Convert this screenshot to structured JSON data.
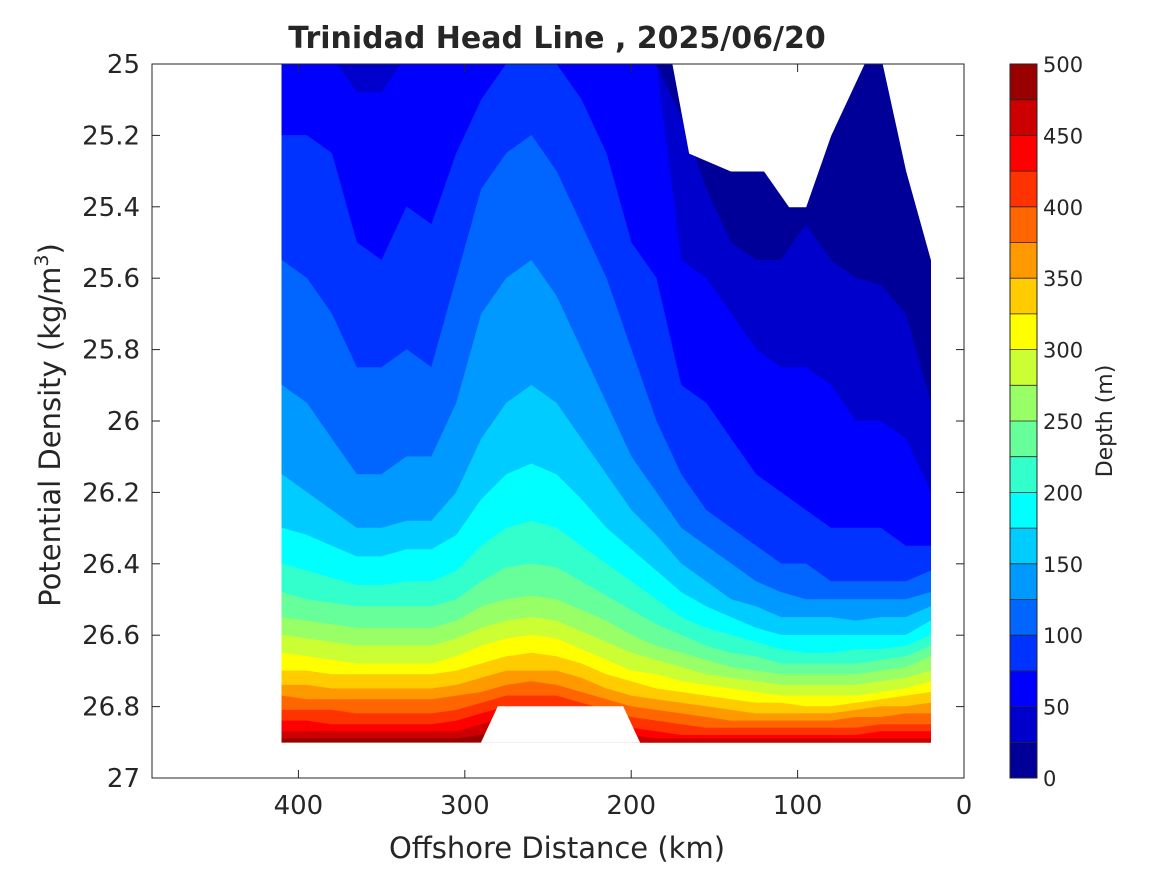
{
  "chart_data": {
    "type": "contour",
    "title": "Trinidad Head Line , 2025/06/20",
    "xlabel": "Offshore Distance (km)",
    "ylabel": "Potential Density (kg/m",
    "ylabel_sup": "3",
    "ylabel_close": ")",
    "x_reversed": true,
    "xlim": [
      488,
      0
    ],
    "ylim": [
      25,
      27
    ],
    "y_reversed": true,
    "xticks": [
      400,
      300,
      200,
      100,
      0
    ],
    "xtick_labels": [
      "400",
      "300",
      "200",
      "100",
      "0"
    ],
    "yticks": [
      25,
      25.2,
      25.4,
      25.6,
      25.8,
      26,
      26.2,
      26.4,
      26.6,
      26.8,
      27
    ],
    "ytick_labels": [
      "25",
      "25.2",
      "25.4",
      "25.6",
      "25.8",
      "26",
      "26.2",
      "26.4",
      "26.6",
      "26.8",
      "27"
    ],
    "grid": false,
    "colorbar": {
      "label": "Depth (m)",
      "min": 0,
      "max": 500,
      "step": 25,
      "ticks": [
        0,
        50,
        100,
        150,
        200,
        250,
        300,
        350,
        400,
        450,
        500
      ],
      "tick_labels": [
        "0",
        "50",
        "100",
        "150",
        "200",
        "250",
        "300",
        "350",
        "400",
        "450",
        "500"
      ],
      "colormap": "jet"
    },
    "stations_km": [
      410,
      395,
      380,
      365,
      350,
      335,
      320,
      305,
      290,
      275,
      260,
      245,
      230,
      215,
      200,
      185,
      170,
      155,
      140,
      125,
      110,
      95,
      80,
      65,
      50,
      35,
      20
    ],
    "isopycnal_depths": {
      "levels": [
        0,
        25,
        50,
        75,
        100,
        125,
        150,
        175,
        200,
        225,
        250,
        275,
        300,
        325,
        350,
        375,
        400,
        425,
        450,
        475,
        500
      ],
      "sigma": [
        [
          null,
          null,
          null,
          null,
          null,
          null,
          null,
          null,
          null,
          null,
          null,
          null,
          null,
          null,
          null,
          null,
          24.95,
          25.0,
          25.1,
          25.2,
          25.3,
          25.15,
          25.0,
          24.98,
          24.98,
          25.3,
          25.55
        ],
        [
          null,
          null,
          null,
          null,
          null,
          null,
          null,
          null,
          null,
          null,
          null,
          null,
          null,
          null,
          null,
          null,
          25.15,
          25.35,
          25.5,
          25.55,
          25.55,
          25.45,
          25.55,
          25.6,
          25.62,
          25.7,
          25.95
        ],
        [
          25.0,
          24.98,
          24.98,
          25.08,
          25.08,
          24.98,
          24.98,
          24.98,
          24.98,
          24.98,
          24.98,
          24.98,
          24.98,
          24.98,
          24.98,
          25.0,
          25.55,
          25.6,
          25.7,
          25.8,
          25.85,
          25.85,
          25.9,
          26.0,
          26.0,
          26.05,
          26.2
        ],
        [
          25.2,
          25.2,
          25.25,
          25.5,
          25.55,
          25.4,
          25.45,
          25.25,
          25.1,
          25.0,
          24.98,
          25.0,
          25.1,
          25.25,
          25.5,
          25.6,
          25.9,
          25.95,
          26.05,
          26.15,
          26.2,
          26.25,
          26.3,
          26.3,
          26.3,
          26.35,
          26.35
        ],
        [
          25.55,
          25.6,
          25.7,
          25.85,
          25.85,
          25.8,
          25.85,
          25.6,
          25.35,
          25.25,
          25.2,
          25.3,
          25.45,
          25.6,
          25.8,
          26.0,
          26.15,
          26.25,
          26.3,
          26.35,
          26.4,
          26.4,
          26.45,
          26.45,
          26.45,
          26.45,
          26.42
        ],
        [
          25.9,
          25.95,
          26.05,
          26.15,
          26.15,
          26.1,
          26.1,
          25.95,
          25.7,
          25.6,
          25.55,
          25.65,
          25.8,
          25.95,
          26.1,
          26.2,
          26.3,
          26.35,
          26.4,
          26.45,
          26.48,
          26.5,
          26.5,
          26.5,
          26.5,
          26.5,
          26.48
        ],
        [
          26.15,
          26.2,
          26.25,
          26.3,
          26.3,
          26.28,
          26.28,
          26.2,
          26.05,
          25.95,
          25.9,
          25.95,
          26.05,
          26.15,
          26.25,
          26.32,
          26.4,
          26.45,
          26.5,
          26.52,
          26.55,
          26.55,
          26.55,
          26.56,
          26.55,
          26.55,
          26.52
        ],
        [
          26.3,
          26.32,
          26.35,
          26.38,
          26.38,
          26.36,
          26.36,
          26.32,
          26.22,
          26.15,
          26.12,
          26.15,
          26.22,
          26.3,
          26.36,
          26.42,
          26.48,
          26.52,
          26.55,
          26.58,
          26.6,
          26.6,
          26.6,
          26.6,
          26.6,
          26.6,
          26.56
        ],
        [
          26.4,
          26.42,
          26.44,
          26.46,
          26.46,
          26.45,
          26.45,
          26.42,
          26.35,
          26.3,
          26.28,
          26.3,
          26.35,
          26.4,
          26.45,
          26.5,
          26.55,
          26.58,
          26.6,
          26.62,
          26.64,
          26.65,
          26.65,
          26.64,
          26.64,
          26.63,
          26.6
        ],
        [
          26.48,
          26.5,
          26.51,
          26.52,
          26.52,
          26.52,
          26.52,
          26.5,
          26.45,
          26.41,
          26.4,
          26.41,
          26.45,
          26.49,
          26.53,
          26.57,
          26.6,
          26.63,
          26.65,
          26.66,
          26.68,
          26.68,
          26.68,
          26.68,
          26.67,
          26.66,
          26.63
        ],
        [
          26.55,
          26.56,
          26.57,
          26.58,
          26.58,
          26.58,
          26.58,
          26.56,
          26.52,
          26.5,
          26.49,
          26.5,
          26.53,
          26.56,
          26.6,
          26.63,
          26.65,
          26.67,
          26.69,
          26.7,
          26.71,
          26.71,
          26.71,
          26.71,
          26.7,
          26.69,
          26.66
        ],
        [
          26.6,
          26.61,
          26.62,
          26.63,
          26.63,
          26.63,
          26.63,
          26.61,
          26.58,
          26.56,
          26.55,
          26.56,
          26.59,
          26.62,
          26.65,
          26.67,
          26.69,
          26.71,
          26.72,
          26.73,
          26.74,
          26.74,
          26.74,
          26.74,
          26.73,
          26.72,
          26.7
        ],
        [
          26.65,
          26.66,
          26.67,
          26.68,
          26.68,
          26.68,
          26.68,
          26.66,
          26.63,
          26.61,
          26.6,
          26.61,
          26.64,
          26.67,
          26.7,
          26.71,
          26.73,
          26.74,
          26.75,
          26.76,
          26.77,
          26.77,
          26.77,
          26.77,
          26.76,
          26.75,
          26.73
        ],
        [
          26.7,
          26.7,
          26.71,
          26.71,
          26.71,
          26.71,
          26.71,
          26.7,
          26.68,
          26.66,
          26.65,
          26.66,
          26.68,
          26.71,
          26.73,
          26.75,
          26.76,
          26.77,
          26.78,
          26.79,
          26.79,
          26.8,
          26.8,
          26.79,
          26.78,
          26.77,
          26.76
        ],
        [
          26.74,
          26.74,
          26.75,
          26.75,
          26.75,
          26.75,
          26.75,
          26.74,
          26.72,
          26.7,
          26.7,
          26.7,
          26.72,
          26.75,
          26.77,
          26.78,
          26.79,
          26.8,
          26.81,
          26.82,
          26.82,
          26.82,
          26.82,
          26.81,
          26.8,
          26.8,
          26.79
        ],
        [
          26.77,
          26.78,
          26.78,
          26.78,
          26.78,
          26.78,
          26.78,
          26.77,
          26.76,
          26.74,
          26.73,
          26.74,
          26.76,
          26.78,
          26.8,
          26.81,
          26.82,
          26.83,
          26.84,
          26.84,
          26.84,
          26.84,
          26.84,
          26.83,
          26.83,
          26.82,
          26.82
        ],
        [
          26.81,
          26.81,
          26.81,
          26.82,
          26.82,
          26.82,
          26.82,
          26.81,
          26.79,
          26.77,
          26.77,
          26.77,
          26.79,
          26.81,
          26.83,
          26.84,
          26.85,
          26.86,
          26.86,
          26.86,
          26.86,
          26.86,
          26.86,
          26.86,
          26.85,
          26.85,
          26.85
        ],
        [
          26.84,
          26.84,
          26.85,
          26.85,
          26.85,
          26.85,
          26.85,
          26.84,
          26.82,
          26.8,
          26.8,
          26.8,
          26.82,
          26.84,
          26.86,
          26.87,
          26.88,
          26.88,
          26.88,
          26.88,
          26.88,
          26.88,
          26.88,
          26.88,
          26.87,
          26.87,
          26.87
        ],
        [
          26.87,
          26.87,
          26.87,
          26.87,
          26.87,
          26.87,
          26.87,
          26.87,
          26.85,
          26.83,
          26.83,
          26.83,
          26.85,
          26.87,
          26.88,
          26.89,
          26.89,
          26.89,
          26.89,
          26.89,
          26.89,
          26.89,
          26.89,
          26.89,
          26.89,
          26.89,
          26.89
        ],
        [
          26.89,
          26.89,
          26.89,
          26.89,
          26.89,
          26.89,
          26.89,
          26.89,
          26.88,
          26.86,
          26.86,
          26.86,
          26.88,
          26.89,
          26.9,
          26.9,
          26.9,
          26.9,
          26.9,
          26.9,
          26.9,
          26.9,
          26.9,
          26.9,
          26.9,
          26.9,
          26.9
        ],
        [
          26.9,
          26.9,
          26.9,
          26.9,
          26.9,
          26.9,
          26.9,
          26.9,
          26.9,
          26.9,
          26.9,
          26.9,
          26.9,
          26.9,
          26.9,
          26.9,
          26.9,
          26.9,
          26.9,
          26.9,
          26.9,
          26.9,
          26.9,
          26.9,
          26.9,
          26.9,
          26.9
        ]
      ]
    },
    "max_sampled_sigma": 26.9,
    "blank_regions": [
      {
        "description": "shallow gap near surface",
        "x": [
          175,
          165,
          140,
          120,
          105,
          95,
          80,
          60
        ],
        "sigma": [
          25.0,
          25.25,
          25.3,
          25.3,
          25.4,
          25.4,
          25.2,
          25.0
        ]
      },
      {
        "description": "deep gap",
        "x": [
          290,
          280,
          205,
          195
        ],
        "sigma": [
          26.9,
          26.8,
          26.8,
          26.9
        ]
      }
    ]
  }
}
